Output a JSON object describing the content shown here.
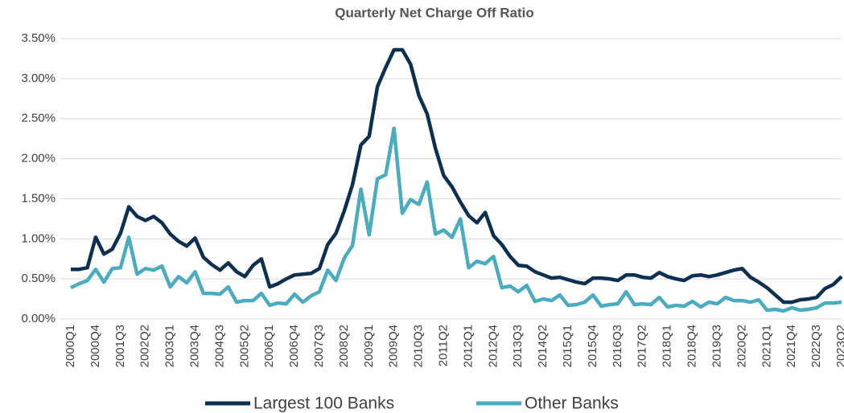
{
  "chart_data": {
    "type": "line",
    "title": "Quarterly Net Charge Off Ratio",
    "categories": [
      "2000Q1",
      null,
      null,
      "2000Q4",
      null,
      null,
      "2001Q3",
      null,
      null,
      "2002Q2",
      null,
      null,
      "2003Q1",
      null,
      null,
      "2003Q4",
      null,
      null,
      "2004Q3",
      null,
      null,
      "2005Q2",
      null,
      null,
      "2006Q1",
      null,
      null,
      "2006Q4",
      null,
      null,
      "2007Q3",
      null,
      null,
      "2008Q2",
      null,
      null,
      "2009Q1",
      null,
      null,
      "2009Q4",
      null,
      null,
      "2010Q3",
      null,
      null,
      "2011Q2",
      null,
      null,
      "2012Q1",
      null,
      null,
      "2012Q4",
      null,
      null,
      "2013Q3",
      null,
      null,
      "2014Q2",
      null,
      null,
      "2015Q1",
      null,
      null,
      "2015Q4",
      null,
      null,
      "2016Q3",
      null,
      null,
      "2017Q2",
      null,
      null,
      "2018Q1",
      null,
      null,
      "2018Q4",
      null,
      null,
      "2019Q3",
      null,
      null,
      "2020Q2",
      null,
      null,
      "2021Q1",
      null,
      null,
      "2021Q4",
      null,
      null,
      "2022Q3",
      null,
      null,
      "2023Q2"
    ],
    "series": [
      {
        "name": "Largest 100 Banks",
        "color": "#0d3050",
        "values": [
          0.62,
          0.62,
          0.64,
          1.02,
          0.81,
          0.87,
          1.07,
          1.4,
          1.28,
          1.23,
          1.28,
          1.2,
          1.06,
          0.97,
          0.91,
          1.01,
          0.77,
          0.68,
          0.61,
          0.7,
          0.59,
          0.53,
          0.67,
          0.75,
          0.4,
          0.44,
          0.5,
          0.55,
          0.56,
          0.57,
          0.63,
          0.93,
          1.07,
          1.35,
          1.68,
          2.17,
          2.28,
          2.9,
          3.14,
          3.36,
          3.36,
          3.18,
          2.79,
          2.56,
          2.13,
          1.79,
          1.65,
          1.46,
          1.29,
          1.2,
          1.33,
          1.04,
          0.93,
          0.78,
          0.67,
          0.66,
          0.59,
          0.55,
          0.51,
          0.52,
          0.49,
          0.46,
          0.44,
          0.51,
          0.51,
          0.5,
          0.48,
          0.55,
          0.55,
          0.52,
          0.51,
          0.58,
          0.53,
          0.5,
          0.48,
          0.54,
          0.55,
          0.53,
          0.55,
          0.58,
          0.61,
          0.63,
          0.52,
          0.46,
          0.39,
          0.3,
          0.21,
          0.21,
          0.24,
          0.25,
          0.27,
          0.38,
          0.43,
          0.53
        ]
      },
      {
        "name": "Other Banks",
        "color": "#4bacc0",
        "values": [
          0.39,
          0.44,
          0.48,
          0.62,
          0.46,
          0.63,
          0.64,
          1.02,
          0.56,
          0.63,
          0.61,
          0.66,
          0.4,
          0.53,
          0.45,
          0.59,
          0.32,
          0.32,
          0.31,
          0.4,
          0.21,
          0.23,
          0.23,
          0.32,
          0.17,
          0.2,
          0.19,
          0.31,
          0.21,
          0.29,
          0.34,
          0.61,
          0.48,
          0.76,
          0.92,
          1.62,
          1.05,
          1.75,
          1.8,
          2.38,
          1.32,
          1.49,
          1.43,
          1.71,
          1.06,
          1.11,
          1.02,
          1.25,
          0.64,
          0.72,
          0.69,
          0.78,
          0.39,
          0.41,
          0.34,
          0.42,
          0.22,
          0.25,
          0.23,
          0.3,
          0.17,
          0.18,
          0.21,
          0.3,
          0.16,
          0.18,
          0.19,
          0.34,
          0.18,
          0.19,
          0.18,
          0.27,
          0.15,
          0.17,
          0.16,
          0.22,
          0.15,
          0.21,
          0.19,
          0.27,
          0.23,
          0.23,
          0.21,
          0.24,
          0.11,
          0.12,
          0.1,
          0.14,
          0.11,
          0.12,
          0.14,
          0.2,
          0.2,
          0.21
        ]
      }
    ],
    "ylim": [
      0,
      3.5
    ],
    "yticks": [
      {
        "value": 0,
        "label": "0.00%"
      },
      {
        "value": 0.5,
        "label": "0.50%"
      },
      {
        "value": 1,
        "label": "1.00%"
      },
      {
        "value": 1.5,
        "label": "1.50%"
      },
      {
        "value": 2,
        "label": "2.00%"
      },
      {
        "value": 2.5,
        "label": "2.50%"
      },
      {
        "value": 3,
        "label": "3.00%"
      },
      {
        "value": 3.5,
        "label": "3.50%"
      }
    ],
    "grid": true,
    "legend": "bottom"
  }
}
